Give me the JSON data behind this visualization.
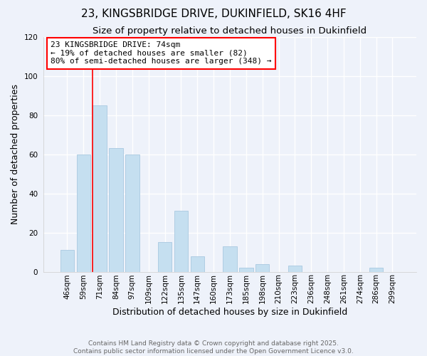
{
  "title_line1": "23, KINGSBRIDGE DRIVE, DUKINFIELD, SK16 4HF",
  "title_line2": "Size of property relative to detached houses in Dukinfield",
  "xlabel": "Distribution of detached houses by size in Dukinfield",
  "ylabel": "Number of detached properties",
  "bar_labels": [
    "46sqm",
    "59sqm",
    "71sqm",
    "84sqm",
    "97sqm",
    "109sqm",
    "122sqm",
    "135sqm",
    "147sqm",
    "160sqm",
    "173sqm",
    "185sqm",
    "198sqm",
    "210sqm",
    "223sqm",
    "236sqm",
    "248sqm",
    "261sqm",
    "274sqm",
    "286sqm",
    "299sqm"
  ],
  "bar_values": [
    11,
    60,
    85,
    63,
    60,
    0,
    15,
    31,
    8,
    0,
    13,
    2,
    4,
    0,
    3,
    0,
    0,
    0,
    0,
    2,
    0
  ],
  "bar_color": "#c5dff0",
  "bar_edge_color": "#a8c8e0",
  "ylim": [
    0,
    120
  ],
  "yticks": [
    0,
    20,
    40,
    60,
    80,
    100,
    120
  ],
  "red_line_x": 2.0,
  "annotation_line1": "23 KINGSBRIDGE DRIVE: 74sqm",
  "annotation_line2": "← 19% of detached houses are smaller (82)",
  "annotation_line3": "80% of semi-detached houses are larger (348) →",
  "footer_line1": "Contains HM Land Registry data © Crown copyright and database right 2025.",
  "footer_line2": "Contains public sector information licensed under the Open Government Licence v3.0.",
  "bg_color": "#eef2fa",
  "grid_color": "#ffffff",
  "title_fontsize": 11,
  "subtitle_fontsize": 9.5,
  "axis_label_fontsize": 9,
  "tick_fontsize": 7.5,
  "annotation_fontsize": 8,
  "footer_fontsize": 6.5
}
